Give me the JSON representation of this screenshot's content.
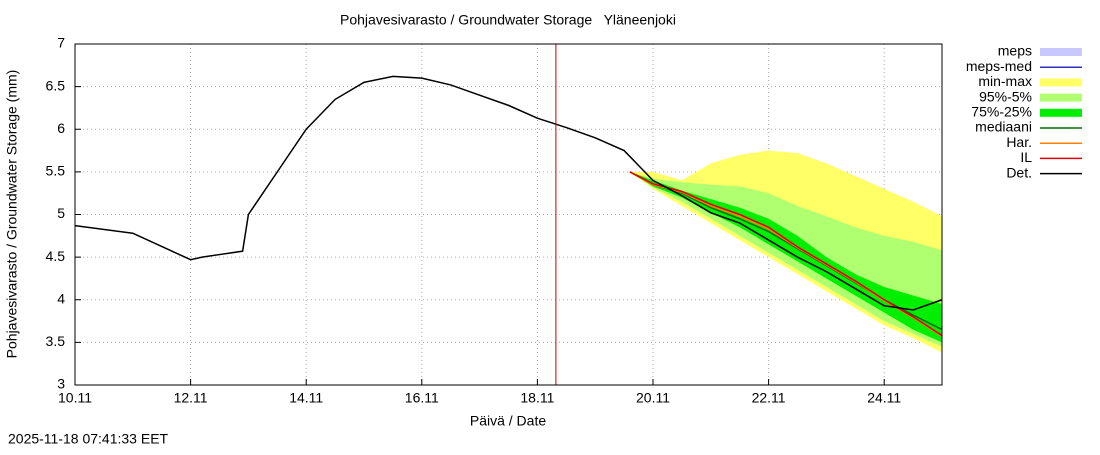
{
  "chart_data": {
    "type": "line",
    "title": "Pohjavesivarasto / Groundwater Storage   Yläneenjoki",
    "xlabel": "Päivä / Date",
    "ylabel": "Pohjavesivarasto / Groundwater Storage (mm)",
    "timestamp": "2025-11-18 07:41:33 EET",
    "xlim": [
      0,
      15
    ],
    "ylim": [
      3,
      7
    ],
    "xticks": [
      {
        "value": 0,
        "label": "10.11"
      },
      {
        "value": 2,
        "label": "12.11"
      },
      {
        "value": 4,
        "label": "14.11"
      },
      {
        "value": 6,
        "label": "16.11"
      },
      {
        "value": 8,
        "label": "18.11"
      },
      {
        "value": 10,
        "label": "20.11"
      },
      {
        "value": 12,
        "label": "22.11"
      },
      {
        "value": 14,
        "label": "24.11"
      }
    ],
    "yticks": [
      3,
      3.5,
      4,
      4.5,
      5,
      5.5,
      6,
      6.5,
      7
    ],
    "grid": true,
    "now": 8.32,
    "now_color": "#cc0000",
    "series": [
      {
        "name": "meps",
        "kind": "band",
        "color": "#c8c8ff",
        "x": [],
        "lower": [],
        "upper": []
      },
      {
        "name": "meps-med",
        "kind": "line",
        "color": "#3030c0",
        "x": [],
        "values": []
      },
      {
        "name": "min-max",
        "kind": "band",
        "color": "#ffff66",
        "x": [
          9.6,
          10,
          10.5,
          11,
          11.5,
          12,
          12.5,
          13,
          13.5,
          14,
          14.5,
          15
        ],
        "lower": [
          5.5,
          5.3,
          5.1,
          4.9,
          4.7,
          4.5,
          4.3,
          4.1,
          3.9,
          3.7,
          3.55,
          3.38
        ],
        "upper": [
          5.5,
          5.5,
          5.4,
          5.6,
          5.7,
          5.75,
          5.72,
          5.6,
          5.45,
          5.3,
          5.15,
          4.98
        ]
      },
      {
        "name": "95%-5%",
        "kind": "band",
        "color": "#b0ff70",
        "x": [
          9.6,
          10,
          10.5,
          11,
          11.5,
          12,
          12.5,
          13,
          13.5,
          14,
          14.5,
          15
        ],
        "lower": [
          5.5,
          5.32,
          5.15,
          4.95,
          4.75,
          4.55,
          4.35,
          4.15,
          3.95,
          3.75,
          3.6,
          3.45
        ],
        "upper": [
          5.5,
          5.42,
          5.38,
          5.35,
          5.33,
          5.25,
          5.1,
          4.98,
          4.85,
          4.75,
          4.68,
          4.58
        ]
      },
      {
        "name": "75%-25%",
        "kind": "band",
        "color": "#00ee00",
        "x": [
          9.6,
          10,
          10.5,
          11,
          11.5,
          12,
          12.5,
          13,
          13.5,
          14,
          14.5,
          15
        ],
        "lower": [
          5.5,
          5.33,
          5.2,
          5.02,
          4.85,
          4.65,
          4.45,
          4.25,
          4.05,
          3.85,
          3.65,
          3.5
        ],
        "upper": [
          5.5,
          5.4,
          5.28,
          5.18,
          5.08,
          4.95,
          4.75,
          4.5,
          4.3,
          4.15,
          4.05,
          3.95
        ]
      },
      {
        "name": "mediaani",
        "kind": "line",
        "color": "#007000",
        "x": [
          9.6,
          10,
          10.5,
          11,
          11.5,
          12,
          12.5,
          13,
          13.5,
          14,
          14.5,
          15
        ],
        "values": [
          5.5,
          5.35,
          5.25,
          5.08,
          4.95,
          4.8,
          4.6,
          4.4,
          4.2,
          4.0,
          3.82,
          3.65
        ]
      },
      {
        "name": "Har.",
        "kind": "line",
        "color": "#ff8000",
        "x": [
          9.6,
          10,
          10.5,
          11,
          11.5,
          12,
          12.5,
          13,
          13.5,
          14,
          14.5,
          15
        ],
        "values": [
          5.5,
          5.35,
          5.26,
          5.1,
          4.98,
          4.83,
          4.61,
          4.41,
          4.21,
          3.99,
          3.79,
          3.57
        ]
      },
      {
        "name": "IL",
        "kind": "line",
        "color": "#dd0000",
        "x": [
          9.6,
          10,
          10.5,
          11,
          11.5,
          12,
          12.5,
          13,
          13.5,
          14,
          14.5,
          15
        ],
        "values": [
          5.5,
          5.36,
          5.27,
          5.12,
          5.0,
          4.85,
          4.62,
          4.42,
          4.22,
          4.0,
          3.8,
          3.58
        ]
      },
      {
        "name": "Det.",
        "kind": "line",
        "color": "#000000",
        "x": [
          0,
          1,
          2,
          2.2,
          2.5,
          2.9,
          3.0,
          3.5,
          4,
          4.5,
          5,
          5.5,
          6,
          6.5,
          7,
          7.5,
          8,
          8.5,
          9,
          9.5,
          10,
          10.5,
          11,
          11.5,
          12,
          12.5,
          13,
          13.5,
          14,
          14.5,
          15
        ],
        "values": [
          4.87,
          4.78,
          4.47,
          4.5,
          4.53,
          4.57,
          5.0,
          5.5,
          6.0,
          6.35,
          6.55,
          6.62,
          6.6,
          6.52,
          6.4,
          6.28,
          6.13,
          6.02,
          5.9,
          5.75,
          5.4,
          5.22,
          5.02,
          4.9,
          4.7,
          4.5,
          4.33,
          4.13,
          3.93,
          3.88,
          4.0
        ]
      }
    ]
  }
}
